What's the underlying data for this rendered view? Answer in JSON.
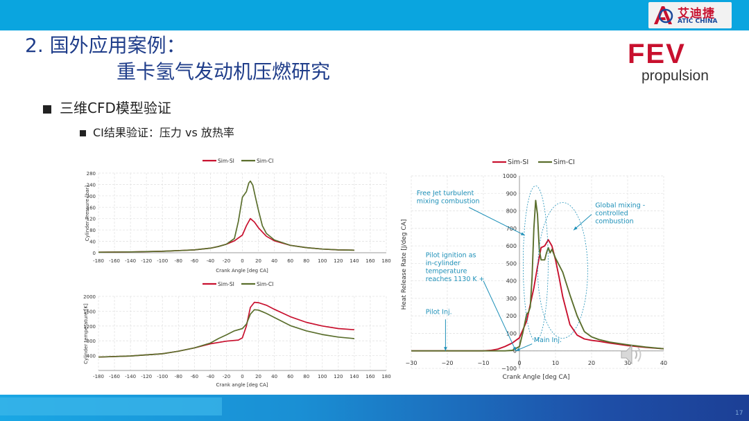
{
  "header": {
    "logo_cn": "艾迪捷",
    "logo_en": "ATIC CHINA"
  },
  "title": {
    "line1": "2. 国外应用案例：",
    "line2": "重卡氢气发动机压燃研究"
  },
  "brand": {
    "word": "FEV",
    "sub": "propulsion"
  },
  "bullets": {
    "level1": "三维CFD模型验证",
    "level2": "CI结果验证：压力 vs 放热率"
  },
  "page_number": "17",
  "colors": {
    "sim_si": "#c8102e",
    "sim_ci": "#5a6e2c",
    "accent_blue": "#0aa5df",
    "annot_blue": "#1e90b8"
  },
  "chart_data": [
    {
      "type": "line",
      "legend": [
        "Sim-SI",
        "Sim-CI"
      ],
      "xlabel": "Crank Angle [deg CA]",
      "ylabel": "Cylinder Pressure [bar]",
      "xlim": [
        -180,
        180
      ],
      "ylim": [
        0,
        280
      ],
      "xticks": [
        -180,
        -160,
        -140,
        -120,
        -100,
        -80,
        -60,
        -40,
        -20,
        0,
        20,
        40,
        60,
        80,
        100,
        120,
        140,
        160,
        180
      ],
      "yticks": [
        0,
        40,
        80,
        120,
        160,
        200,
        240,
        280
      ],
      "series": [
        {
          "name": "Sim-SI",
          "x": [
            -180,
            -140,
            -100,
            -60,
            -40,
            -30,
            -20,
            -10,
            0,
            5,
            10,
            15,
            20,
            30,
            40,
            60,
            80,
            100,
            120,
            140
          ],
          "y": [
            2,
            3,
            5,
            10,
            16,
            22,
            30,
            42,
            62,
            95,
            120,
            108,
            88,
            58,
            42,
            26,
            18,
            13,
            10,
            9
          ]
        },
        {
          "name": "Sim-CI",
          "x": [
            -180,
            -140,
            -100,
            -60,
            -40,
            -30,
            -20,
            -10,
            -5,
            0,
            5,
            8,
            10,
            13,
            16,
            20,
            25,
            30,
            40,
            60,
            80,
            100,
            120,
            140
          ],
          "y": [
            2,
            3,
            5,
            10,
            16,
            22,
            30,
            50,
            110,
            195,
            215,
            245,
            252,
            238,
            200,
            150,
            95,
            68,
            45,
            26,
            18,
            13,
            10,
            9
          ]
        }
      ]
    },
    {
      "type": "line",
      "legend": [
        "Sim-SI",
        "Sim-CI"
      ],
      "xlabel": "Crank angle [deg CA]",
      "ylabel": "Cylinder temperature [K]",
      "xlim": [
        -180,
        180
      ],
      "ylim": [
        0,
        2000
      ],
      "xticks": [
        -180,
        -160,
        -140,
        -120,
        -100,
        -80,
        -60,
        -40,
        -20,
        0,
        20,
        40,
        60,
        80,
        100,
        120,
        140,
        160,
        180
      ],
      "yticks": [
        400,
        800,
        1200,
        1600,
        2000
      ],
      "series": [
        {
          "name": "Sim-SI",
          "x": [
            -180,
            -140,
            -100,
            -80,
            -60,
            -40,
            -20,
            -5,
            0,
            5,
            10,
            15,
            20,
            30,
            40,
            60,
            80,
            100,
            120,
            140
          ],
          "y": [
            360,
            390,
            450,
            520,
            610,
            720,
            790,
            820,
            880,
            1200,
            1700,
            1840,
            1830,
            1760,
            1650,
            1450,
            1300,
            1200,
            1130,
            1100
          ]
        },
        {
          "name": "Sim-CI",
          "x": [
            -180,
            -140,
            -100,
            -80,
            -60,
            -40,
            -30,
            -20,
            -10,
            0,
            5,
            10,
            15,
            20,
            30,
            40,
            60,
            80,
            100,
            120,
            140
          ],
          "y": [
            360,
            390,
            450,
            520,
            610,
            740,
            860,
            960,
            1070,
            1130,
            1250,
            1520,
            1640,
            1630,
            1540,
            1430,
            1210,
            1070,
            970,
            900,
            860
          ]
        }
      ]
    },
    {
      "type": "line",
      "legend": [
        "Sim-SI",
        "Sim-CI"
      ],
      "xlabel": "Crank Angle [deg CA]",
      "ylabel": "Heat Release Rate [J/deg CA]",
      "xlim": [
        -30,
        40
      ],
      "ylim": [
        -100,
        1000
      ],
      "xticks": [
        -30,
        -20,
        -10,
        0,
        10,
        20,
        30,
        40
      ],
      "yticks": [
        -100,
        0,
        100,
        200,
        300,
        400,
        500,
        600,
        700,
        800,
        900,
        1000
      ],
      "series": [
        {
          "name": "Sim-SI",
          "x": [
            -30,
            -10,
            -8,
            -6,
            -4,
            -2,
            0,
            2,
            4,
            5,
            6,
            7,
            8,
            9,
            10,
            11,
            12,
            14,
            16,
            18,
            20,
            22,
            25,
            30,
            35,
            40
          ],
          "y": [
            0,
            0,
            3,
            10,
            25,
            45,
            75,
            170,
            360,
            480,
            590,
            600,
            635,
            600,
            520,
            420,
            310,
            150,
            90,
            68,
            60,
            55,
            45,
            30,
            20,
            12
          ]
        },
        {
          "name": "Sim-CI",
          "x": [
            -30,
            -10,
            -4,
            -2,
            0,
            1,
            2,
            2.5,
            3,
            3.5,
            4,
            4.5,
            5,
            5.5,
            6,
            7,
            7.5,
            8,
            8.5,
            9,
            10,
            12,
            14,
            16,
            18,
            20,
            22,
            25,
            30,
            35,
            40
          ],
          "y": [
            0,
            0,
            0,
            3,
            25,
            110,
            210,
            220,
            250,
            420,
            700,
            860,
            780,
            580,
            520,
            520,
            560,
            590,
            560,
            580,
            530,
            450,
            320,
            200,
            110,
            80,
            65,
            50,
            35,
            22,
            12
          ]
        }
      ],
      "annotations": [
        {
          "text": [
            "Free Jet turbulent",
            "mixing combustion"
          ],
          "x": -28.5,
          "y": 890
        },
        {
          "text": [
            "Global mixing -",
            "controlled",
            "combustion"
          ],
          "x": 21,
          "y": 820
        },
        {
          "text": [
            "Pilot ignition as",
            "in-cylinder",
            "temperature",
            "reaches 1130 K +"
          ],
          "x": -26,
          "y": 535
        },
        {
          "text": [
            "Pilot Inj."
          ],
          "x": -26,
          "y": 210
        },
        {
          "text": [
            "Main Inj."
          ],
          "x": 4,
          "y": 50
        }
      ]
    }
  ]
}
